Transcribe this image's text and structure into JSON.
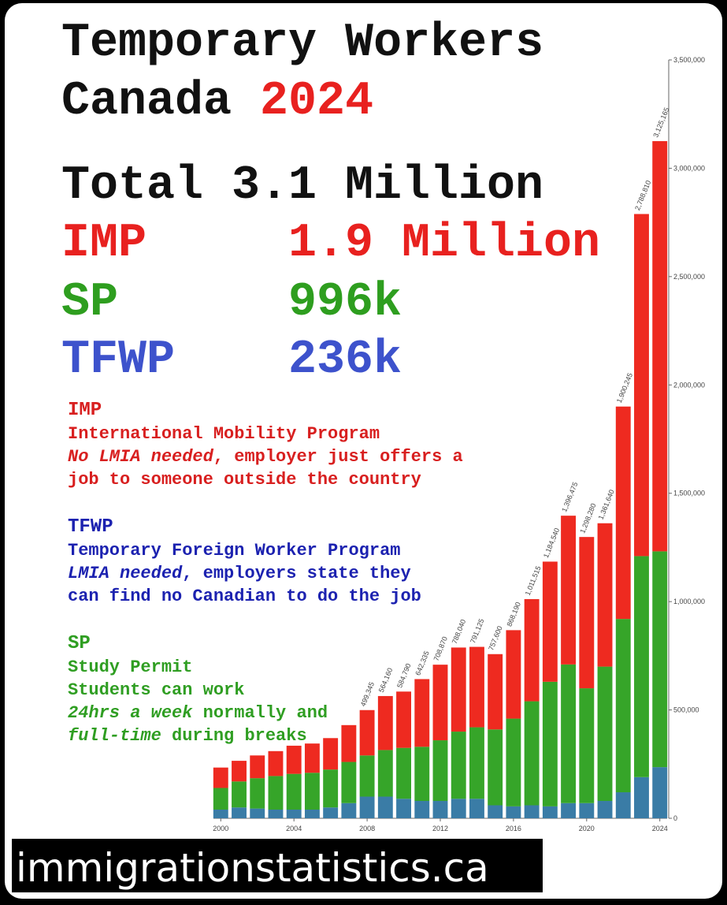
{
  "header": {
    "line1": "Temporary Workers",
    "line2": "Canada",
    "year": "2024"
  },
  "summary": [
    {
      "label": "Total",
      "value": "3.1 Million",
      "color": "#111111"
    },
    {
      "label": "IMP",
      "value": "1.9 Million",
      "color": "#e8211f"
    },
    {
      "label": "SP",
      "value": "996k",
      "color": "#2e9e1f"
    },
    {
      "label": "TFWP",
      "value": "236k",
      "color": "#3d52cc"
    }
  ],
  "programs": [
    {
      "heading": "IMP",
      "color": "#d81f1f",
      "lines": [
        [
          {
            "text": "International Mobility Program",
            "italic": false
          }
        ],
        [
          {
            "text": "No LMIA needed",
            "italic": true
          },
          {
            "text": ", employer just offers a",
            "italic": false
          }
        ],
        [
          {
            "text": "job to someone outside the country",
            "italic": false
          }
        ]
      ]
    },
    {
      "heading": "TFWP",
      "color": "#1c22b0",
      "lines": [
        [
          {
            "text": "Temporary Foreign Worker Program",
            "italic": false
          }
        ],
        [
          {
            "text": "LMIA needed",
            "italic": true
          },
          {
            "text": ", employers state they",
            "italic": false
          }
        ],
        [
          {
            "text": "can find no Canadian to do the job",
            "italic": false
          }
        ]
      ]
    },
    {
      "heading": "SP",
      "color": "#2f9e22",
      "lines": [
        [
          {
            "text": "Study Permit",
            "italic": false
          }
        ],
        [
          {
            "text": "Students can work",
            "italic": false
          }
        ],
        [
          {
            "text": "24hrs a week",
            "italic": true
          },
          {
            "text": " normally and",
            "italic": false
          }
        ],
        [
          {
            "text": "full-time",
            "italic": true
          },
          {
            "text": " during breaks",
            "italic": false
          }
        ]
      ]
    }
  ],
  "chart_data": {
    "type": "stacked_bar",
    "x": [
      2000,
      2001,
      2002,
      2003,
      2004,
      2005,
      2006,
      2007,
      2008,
      2009,
      2010,
      2011,
      2012,
      2013,
      2014,
      2015,
      2016,
      2017,
      2018,
      2019,
      2020,
      2021,
      2022,
      2023,
      2024
    ],
    "series": [
      {
        "name": "TFWP",
        "color": "#3a7ca6",
        "values": [
          40000,
          50000,
          45000,
          40000,
          40000,
          40000,
          50000,
          70000,
          100000,
          100000,
          90000,
          80000,
          80000,
          90000,
          90000,
          60000,
          55000,
          60000,
          55000,
          70000,
          70000,
          80000,
          120000,
          190000,
          236000
        ]
      },
      {
        "name": "SP",
        "color": "#36a529",
        "values": [
          100000,
          120000,
          140000,
          155000,
          165000,
          170000,
          175000,
          190000,
          190000,
          215000,
          235000,
          250000,
          280000,
          310000,
          330000,
          350000,
          405000,
          480000,
          575000,
          640000,
          530000,
          620000,
          800000,
          1020000,
          996000
        ]
      },
      {
        "name": "IMP",
        "color": "#ee2a20",
        "values": [
          94120,
          95255,
          105000,
          115000,
          130000,
          135000,
          145055,
          170000,
          209345,
          249160,
          259790,
          312335,
          348870,
          388040,
          371125,
          347600,
          408190,
          471515,
          554540,
          686475,
          698280,
          661640,
          980245,
          1578810,
          1893165
        ]
      }
    ],
    "totals": [
      null,
      null,
      null,
      null,
      null,
      null,
      null,
      null,
      499345,
      564160,
      584790,
      642335,
      708870,
      788040,
      791125,
      757600,
      868190,
      1011515,
      1184540,
      1396475,
      1298280,
      1361640,
      1900245,
      2788810,
      3125165
    ],
    "total_labels": [
      null,
      null,
      null,
      null,
      null,
      null,
      null,
      null,
      "499,345",
      "564,160",
      "584,790",
      "642,335",
      "708,870",
      "788,040",
      "791,125",
      "757,600",
      "868,190",
      "1,011,515",
      "1,184,540",
      "1,396,475",
      "1,298,280",
      "1,361,640",
      "1,900,245",
      "2,788,810",
      "3,125,165"
    ],
    "xlim": [
      1999.6,
      2024.4
    ],
    "xticks": [
      2000,
      2004,
      2008,
      2012,
      2016,
      2020,
      2024
    ],
    "ylim": [
      0,
      3500000
    ],
    "yticks": [
      0,
      {
        "value": 500000,
        "label": "500,000"
      },
      {
        "value": 1000000,
        "label": "1,000,000"
      },
      {
        "value": 1500000,
        "label": "1,500,000"
      },
      {
        "value": 2000000,
        "label": "2,000,000"
      },
      {
        "value": 2500000,
        "label": "2,500,000"
      },
      {
        "value": 3000000,
        "label": "3,000,000"
      },
      {
        "value": 3500000,
        "label": "3,500,000"
      }
    ],
    "y_axis_side": "right"
  },
  "footer": {
    "site": "immigrationstatistics.ca"
  }
}
